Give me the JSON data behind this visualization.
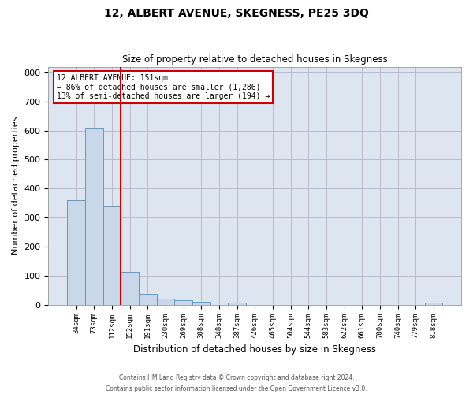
{
  "title": "12, ALBERT AVENUE, SKEGNESS, PE25 3DQ",
  "subtitle": "Size of property relative to detached houses in Skegness",
  "xlabel": "Distribution of detached houses by size in Skegness",
  "ylabel": "Number of detached properties",
  "categories": [
    "34sqm",
    "73sqm",
    "112sqm",
    "152sqm",
    "191sqm",
    "230sqm",
    "269sqm",
    "308sqm",
    "348sqm",
    "387sqm",
    "426sqm",
    "465sqm",
    "504sqm",
    "544sqm",
    "583sqm",
    "622sqm",
    "661sqm",
    "700sqm",
    "740sqm",
    "779sqm",
    "818sqm"
  ],
  "values": [
    360,
    607,
    338,
    113,
    36,
    21,
    15,
    10,
    0,
    8,
    0,
    0,
    0,
    0,
    0,
    0,
    0,
    0,
    0,
    0,
    8
  ],
  "bar_color": "#c8d8ea",
  "bar_edge_color": "#6699bb",
  "annotation_title": "12 ALBERT AVENUE: 151sqm",
  "annotation_line1": "← 86% of detached houses are smaller (1,286)",
  "annotation_line2": "13% of semi-detached houses are larger (194) →",
  "annotation_box_facecolor": "#ffffff",
  "annotation_box_edgecolor": "#cc0000",
  "vline_color": "#cc0000",
  "grid_color": "#bbbbcc",
  "plot_bg_color": "#dde5f0",
  "fig_bg_color": "#ffffff",
  "ylim": [
    0,
    820
  ],
  "yticks": [
    0,
    100,
    200,
    300,
    400,
    500,
    600,
    700,
    800
  ],
  "footer_line1": "Contains HM Land Registry data © Crown copyright and database right 2024.",
  "footer_line2": "Contains public sector information licensed under the Open Government Licence v3.0."
}
